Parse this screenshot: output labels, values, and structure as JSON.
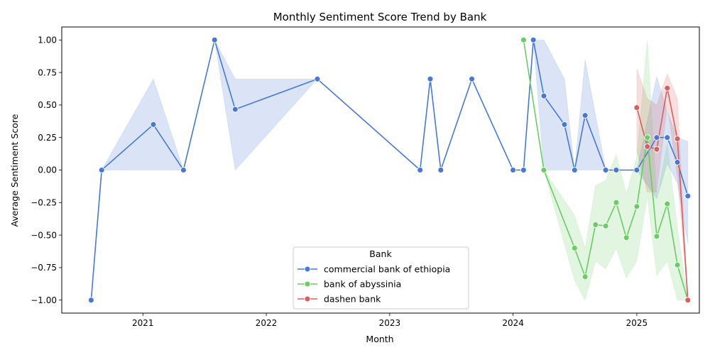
{
  "chart_data": {
    "type": "line",
    "title": "Monthly Sentiment Score Trend by Bank",
    "xlabel": "Month",
    "ylabel": "Average Sentiment Score",
    "xlim": [
      "2020-05-06",
      "2025-07-05"
    ],
    "ylim": [
      -1.1,
      1.1
    ],
    "x_ticks": [
      "2021-01-01",
      "2022-01-01",
      "2023-01-01",
      "2024-01-01",
      "2025-01-01"
    ],
    "x_tick_labels": [
      "2021",
      "2022",
      "2023",
      "2024",
      "2025"
    ],
    "y_ticks": [
      -1.0,
      -0.75,
      -0.5,
      -0.25,
      0.0,
      0.25,
      0.5,
      0.75,
      1.0
    ],
    "y_tick_labels": [
      "−1.00",
      "−0.75",
      "−0.50",
      "−0.25",
      "0.00",
      "0.25",
      "0.50",
      "0.75",
      "1.00"
    ],
    "legend": {
      "title": "Bank",
      "placement": "lower center"
    },
    "grid": false,
    "series": [
      {
        "name": "commercial bank of ethiopia",
        "color": "#4878d0",
        "points": [
          {
            "x": "2020-08-01",
            "y": -1.0
          },
          {
            "x": "2020-09-01",
            "y": 0.0
          },
          {
            "x": "2021-02-01",
            "y": 0.35,
            "ci": [
              0.0,
              0.7
            ]
          },
          {
            "x": "2021-05-01",
            "y": 0.0
          },
          {
            "x": "2021-08-01",
            "y": 1.0
          },
          {
            "x": "2021-10-01",
            "y": 0.467,
            "ci": [
              0.0,
              0.7
            ]
          },
          {
            "x": "2022-06-01",
            "y": 0.7
          },
          {
            "x": "2023-04-01",
            "y": 0.0
          },
          {
            "x": "2023-05-01",
            "y": 0.7
          },
          {
            "x": "2023-06-01",
            "y": 0.0
          },
          {
            "x": "2023-09-01",
            "y": 0.7
          },
          {
            "x": "2024-01-01",
            "y": 0.0
          },
          {
            "x": "2024-02-01",
            "y": 0.0
          },
          {
            "x": "2024-03-01",
            "y": 1.0
          },
          {
            "x": "2024-04-01",
            "y": 0.57,
            "ci": [
              0.0,
              1.0
            ]
          },
          {
            "x": "2024-06-01",
            "y": 0.35,
            "ci": [
              0.0,
              0.7
            ]
          },
          {
            "x": "2024-07-01",
            "y": 0.0
          },
          {
            "x": "2024-08-01",
            "y": 0.42,
            "ci": [
              0.0,
              0.85
            ]
          },
          {
            "x": "2024-10-01",
            "y": 0.0
          },
          {
            "x": "2024-11-01",
            "y": 0.0
          },
          {
            "x": "2025-01-01",
            "y": 0.0
          },
          {
            "x": "2025-03-01",
            "y": 0.25,
            "ci": [
              -0.22,
              0.72
            ]
          },
          {
            "x": "2025-04-01",
            "y": 0.25,
            "ci": [
              0.05,
              0.45
            ]
          },
          {
            "x": "2025-05-01",
            "y": 0.06,
            "ci": [
              -0.1,
              0.25
            ]
          },
          {
            "x": "2025-06-01",
            "y": -0.2,
            "ci": [
              -0.57,
              0.22
            ]
          }
        ]
      },
      {
        "name": "bank of abyssinia",
        "color": "#6acc64",
        "points": [
          {
            "x": "2024-02-01",
            "y": 1.0
          },
          {
            "x": "2024-04-01",
            "y": 0.0
          },
          {
            "x": "2024-07-01",
            "y": -0.6,
            "ci": [
              -0.85,
              -0.35
            ]
          },
          {
            "x": "2024-08-01",
            "y": -0.82,
            "ci": [
              -1.0,
              -0.6
            ]
          },
          {
            "x": "2024-09-01",
            "y": -0.42,
            "ci": [
              -0.7,
              -0.12
            ]
          },
          {
            "x": "2024-10-01",
            "y": -0.43,
            "ci": [
              -0.76,
              -0.08
            ]
          },
          {
            "x": "2024-11-01",
            "y": -0.25,
            "ci": [
              -0.6,
              0.12
            ]
          },
          {
            "x": "2024-12-01",
            "y": -0.52,
            "ci": [
              -0.83,
              -0.18
            ]
          },
          {
            "x": "2025-01-01",
            "y": -0.28,
            "ci": [
              -0.7,
              0.1
            ]
          },
          {
            "x": "2025-02-01",
            "y": 0.25,
            "ci": [
              -0.2,
              1.0
            ]
          },
          {
            "x": "2025-03-01",
            "y": -0.51,
            "ci": [
              -0.81,
              -0.22
            ]
          },
          {
            "x": "2025-04-01",
            "y": -0.26,
            "ci": [
              -0.7,
              0.2
            ]
          },
          {
            "x": "2025-05-01",
            "y": -0.73,
            "ci": [
              -1.0,
              -0.45
            ]
          },
          {
            "x": "2025-06-01",
            "y": -1.0
          }
        ]
      },
      {
        "name": "dashen bank",
        "color": "#d65f5f",
        "points": [
          {
            "x": "2025-01-01",
            "y": 0.48,
            "ci": [
              0.15,
              0.78
            ]
          },
          {
            "x": "2025-02-01",
            "y": 0.18,
            "ci": [
              -0.17,
              0.55
            ]
          },
          {
            "x": "2025-03-01",
            "y": 0.16,
            "ci": [
              -0.17,
              0.5
            ]
          },
          {
            "x": "2025-04-01",
            "y": 0.63,
            "ci": [
              0.5,
              0.74
            ]
          },
          {
            "x": "2025-05-01",
            "y": 0.24,
            "ci": [
              -0.05,
              0.55
            ]
          },
          {
            "x": "2025-06-01",
            "y": -1.0
          }
        ]
      }
    ]
  }
}
